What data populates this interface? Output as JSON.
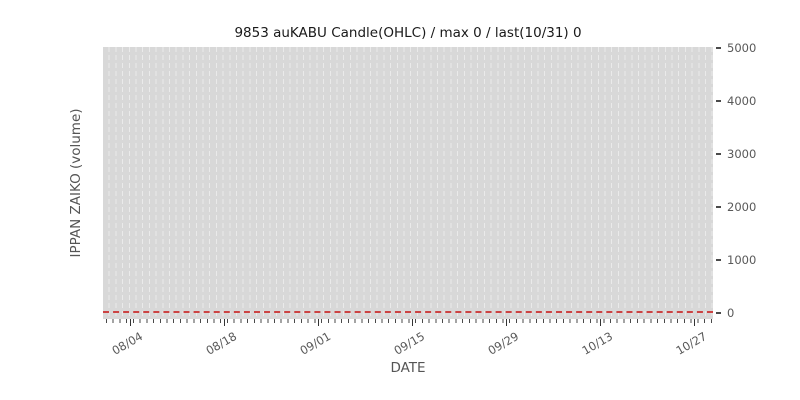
{
  "chart_data": {
    "type": "line",
    "title": "9853 auKABU Candle(OHLC) / max 0 / last(10/31) 0",
    "xlabel": "DATE",
    "ylabel": "IPPAN ZAIKO (volume)",
    "x_tick_labels": [
      "08/04",
      "08/18",
      "09/01",
      "09/15",
      "09/29",
      "10/13",
      "10/27"
    ],
    "y_tick_labels": [
      "0",
      "1000",
      "2000",
      "3000",
      "4000",
      "5000"
    ],
    "ylim": [
      0,
      5000
    ],
    "y_axis_side": "right",
    "grid": {
      "vertical_gridlines": "daily",
      "gridline_style": "dashed",
      "horizontal_gridlines": false
    },
    "legend_position": "none",
    "series": [
      {
        "name": "IPPAN ZAIKO volume",
        "line_style": "dashed",
        "color": "#cc4343",
        "categories": [
          "08/04",
          "08/18",
          "09/01",
          "09/15",
          "09/29",
          "10/13",
          "10/27"
        ],
        "values": [
          0,
          0,
          0,
          0,
          0,
          0,
          0
        ],
        "constant_value": 0,
        "max": 0,
        "last_label": "last(10/31)",
        "last_value": 0
      }
    ],
    "colors": {
      "figure_bg": "#ffffff",
      "plot_bg": "#d8d8d8",
      "grid_line": "#eaeaea",
      "zero_line": "#cc4343",
      "tick_text": "#595959",
      "axis_label_text": "#555555",
      "title_text": "#1a1a1a"
    }
  }
}
